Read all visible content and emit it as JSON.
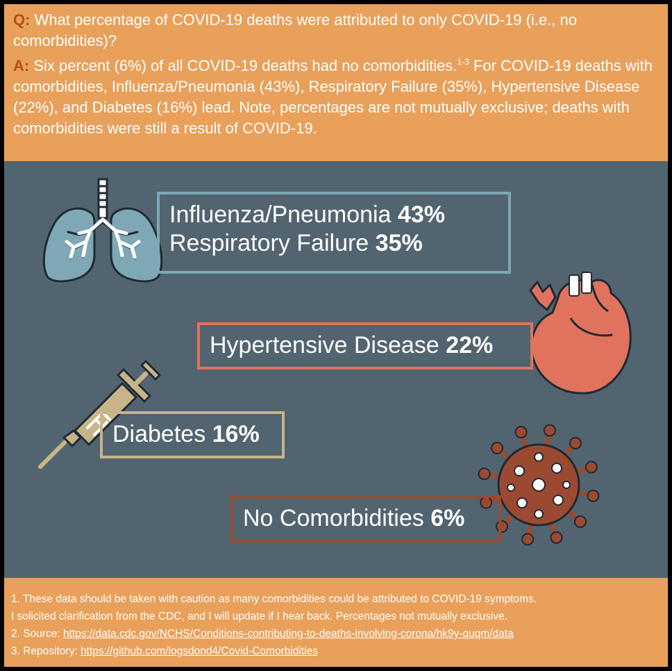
{
  "question": {
    "prefix": "Q:",
    "text": "What percentage of COVID-19 deaths were attributed to only COVID-19 (i.e., no comorbidities)?"
  },
  "answer": {
    "prefix": "A:",
    "text_before_sup": "Six percent (6%) of all COVID-19 deaths had no comorbidities.",
    "sup": "1-3",
    "text_after_sup": " For COVID-19 deaths with comorbidities, Influenza/Pneumonia (43%),  Respiratory Failure (35%), Hypertensive Disease (22%), and Diabetes (16%) lead. Note, percentages are not mutually exclusive; deaths with comorbidities were still a result of COVID-19."
  },
  "stats": {
    "influenza": {
      "label": "Influenza/Pneumonia ",
      "value": "43%"
    },
    "respiratory": {
      "label": "Respiratory Failure ",
      "value": "35%"
    },
    "hypertensive": {
      "label": "Hypertensive Disease ",
      "value": "22%"
    },
    "diabetes": {
      "label": "Diabetes ",
      "value": "16%"
    },
    "none": {
      "label": "No Comorbidities ",
      "value": "6%"
    }
  },
  "icons": {
    "lungs": "lungs-icon",
    "heart": "heart-icon",
    "syringe": "syringe-icon",
    "virus": "virus-icon"
  },
  "colors": {
    "header_bg": "#e9a05b",
    "panel_bg": "#52646f",
    "lungs": "#7ea8b6",
    "heart": "#e0725e",
    "syringe": "#c7b488",
    "virus": "#9b4a31"
  },
  "footer": {
    "note1_line1": "1. These data should be taken with caution as many comorbidities could be attributed to COVID-19 symptoms.",
    "note1_line2": " I solicited clarification from the CDC, and I will update if I hear back. Percentages not mutually exclusive.",
    "note2_prefix": "2. Source: ",
    "note2_link": "https://data.cdc.gov/NCHS/Conditions-contributing-to-deaths-involving-corona/hk9y-quqm/data",
    "note3_prefix": "3. Repository: ",
    "note3_link": "https://github.com/logsdond4/Covid-Comorbidities"
  }
}
